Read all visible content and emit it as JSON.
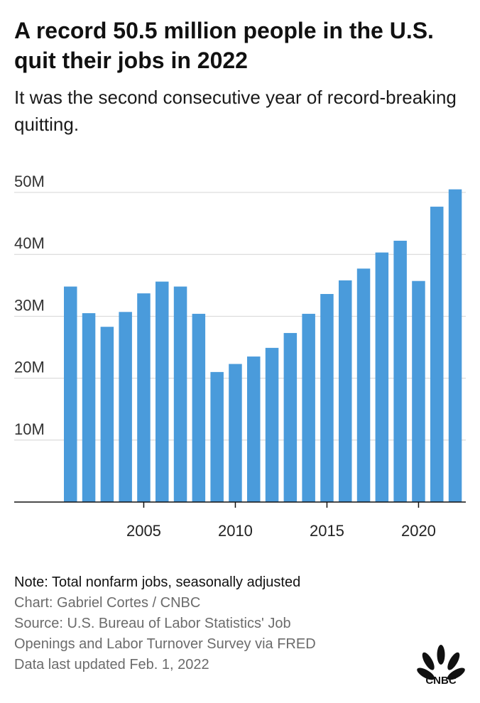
{
  "title": "A record 50.5 million people in the U.S. quit their jobs in 2022",
  "subtitle": "It was the second consecutive year of record-breaking quitting.",
  "colors": {
    "bar": "#4a9bdb",
    "grid": "#d4d4d4",
    "axis": "#111111",
    "text": "#1a1a1a",
    "muted": "#6b6b6b"
  },
  "chart_data": {
    "type": "bar",
    "title": "A record 50.5 million people in the U.S. quit their jobs in 2022",
    "subtitle": "It was the second consecutive year of record-breaking quitting.",
    "x": [
      2001,
      2002,
      2003,
      2004,
      2005,
      2006,
      2007,
      2008,
      2009,
      2010,
      2011,
      2012,
      2013,
      2014,
      2015,
      2016,
      2017,
      2018,
      2019,
      2020,
      2021,
      2022
    ],
    "values": [
      34.8,
      30.5,
      28.3,
      30.7,
      33.7,
      35.6,
      34.8,
      30.4,
      21.0,
      22.3,
      23.5,
      24.9,
      27.3,
      30.4,
      33.6,
      35.8,
      37.7,
      40.3,
      42.2,
      35.7,
      47.7,
      50.5
    ],
    "value_unit": "million",
    "ylim": [
      0,
      50
    ],
    "yticks": [
      10,
      20,
      30,
      40,
      50
    ],
    "ytick_labels": [
      "10M",
      "20M",
      "30M",
      "40M",
      "50M"
    ],
    "xticks": [
      2005,
      2010,
      2015,
      2020
    ],
    "xtick_labels": [
      "2005",
      "2010",
      "2015",
      "2020"
    ],
    "xlabel": "",
    "ylabel": "",
    "grid": true,
    "legend": "none"
  },
  "footer": {
    "note": "Note: Total nonfarm jobs, seasonally adjusted",
    "credit": "Chart: Gabriel Cortes / CNBC",
    "source_line1": "Source: U.S. Bureau of Labor Statistics' Job",
    "source_line2": "Openings and Labor Turnover Survey via FRED",
    "updated": "Data last updated Feb. 1, 2022"
  },
  "logo": {
    "text": "CNBC",
    "icon": "peacock-icon"
  }
}
